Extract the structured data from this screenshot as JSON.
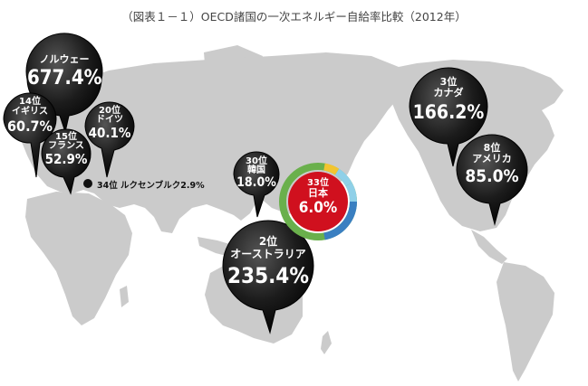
{
  "title": "（図表１－１）OECD諸国の一次エネルギー自給率比較（2012年）",
  "chart_data": {
    "type": "map-bubbles",
    "countries": [
      {
        "rank": "",
        "name": "ノルウェー",
        "value": "677.4%"
      },
      {
        "rank": "14位",
        "name": "イギリス",
        "value": "60.7%"
      },
      {
        "rank": "20位",
        "name": "ドイツ",
        "value": "40.1%"
      },
      {
        "rank": "15位",
        "name": "フランス",
        "value": "52.9%"
      },
      {
        "rank": "34位",
        "name": "ルクセンブルク",
        "value": "2.9%"
      },
      {
        "rank": "30位",
        "name": "韓国",
        "value": "18.0%"
      },
      {
        "rank": "33位",
        "name": "日本",
        "value": "6.0%"
      },
      {
        "rank": "2位",
        "name": "オーストラリア",
        "value": "235.4%"
      },
      {
        "rank": "3位",
        "name": "カナダ",
        "value": "166.2%"
      },
      {
        "rank": "8位",
        "name": "アメリカ",
        "value": "85.0%"
      }
    ],
    "japan_ring_colors": [
      "#6ab04c",
      "#3a7fc1",
      "#8fd0e8",
      "#f2c530"
    ]
  }
}
